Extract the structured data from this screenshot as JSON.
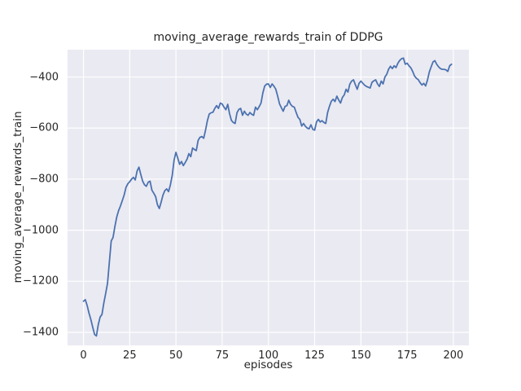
{
  "figure": {
    "title": "moving_average_rewards_train of DDPG",
    "xlabel": "episodes",
    "ylabel": "moving_average_rewards_train"
  },
  "colors": {
    "line": "#4C72B0",
    "plot_background": "#EAEAF2",
    "grid": "#FFFFFF",
    "text": "#262626",
    "figure_background": "#FFFFFF"
  },
  "chart_data": {
    "type": "line",
    "title": "moving_average_rewards_train of DDPG",
    "xlabel": "episodes",
    "ylabel": "moving_average_rewards_train",
    "grid": true,
    "legend_position": "none",
    "xlim": [
      -8.6,
      208.4
    ],
    "ylim": [
      -1451,
      -293
    ],
    "xticks": [
      0,
      25,
      50,
      75,
      100,
      125,
      150,
      175,
      200
    ],
    "yticks": [
      -400,
      -600,
      -800,
      -1000,
      -1200,
      -1400
    ],
    "series": [
      {
        "name": "moving_average_rewards_train",
        "x_start": 0,
        "x_step": 1,
        "values": [
          -1278,
          -1272,
          -1295,
          -1325,
          -1350,
          -1380,
          -1408,
          -1414,
          -1370,
          -1340,
          -1330,
          -1285,
          -1248,
          -1208,
          -1125,
          -1042,
          -1028,
          -985,
          -948,
          -923,
          -905,
          -884,
          -862,
          -832,
          -818,
          -810,
          -800,
          -793,
          -803,
          -768,
          -753,
          -782,
          -808,
          -822,
          -828,
          -812,
          -808,
          -843,
          -855,
          -868,
          -900,
          -915,
          -890,
          -862,
          -845,
          -838,
          -849,
          -822,
          -785,
          -725,
          -695,
          -718,
          -742,
          -731,
          -747,
          -735,
          -722,
          -700,
          -712,
          -678,
          -684,
          -688,
          -648,
          -636,
          -633,
          -640,
          -608,
          -571,
          -545,
          -540,
          -538,
          -523,
          -512,
          -523,
          -502,
          -506,
          -518,
          -528,
          -507,
          -544,
          -570,
          -578,
          -582,
          -540,
          -527,
          -523,
          -550,
          -534,
          -545,
          -550,
          -539,
          -546,
          -550,
          -518,
          -528,
          -516,
          -502,
          -462,
          -435,
          -428,
          -427,
          -441,
          -427,
          -436,
          -448,
          -475,
          -505,
          -520,
          -534,
          -515,
          -512,
          -491,
          -507,
          -515,
          -518,
          -539,
          -558,
          -566,
          -592,
          -582,
          -593,
          -600,
          -603,
          -587,
          -605,
          -608,
          -576,
          -566,
          -576,
          -571,
          -578,
          -582,
          -539,
          -515,
          -495,
          -487,
          -496,
          -475,
          -490,
          -502,
          -480,
          -470,
          -448,
          -459,
          -428,
          -416,
          -411,
          -430,
          -448,
          -425,
          -416,
          -424,
          -432,
          -437,
          -440,
          -443,
          -421,
          -415,
          -411,
          -427,
          -437,
          -416,
          -427,
          -400,
          -389,
          -369,
          -358,
          -367,
          -356,
          -363,
          -346,
          -335,
          -328,
          -326,
          -350,
          -346,
          -356,
          -364,
          -378,
          -396,
          -405,
          -410,
          -422,
          -431,
          -425,
          -435,
          -412,
          -380,
          -360,
          -341,
          -336,
          -350,
          -360,
          -367,
          -370,
          -370,
          -372,
          -378,
          -356,
          -350
        ]
      }
    ]
  }
}
